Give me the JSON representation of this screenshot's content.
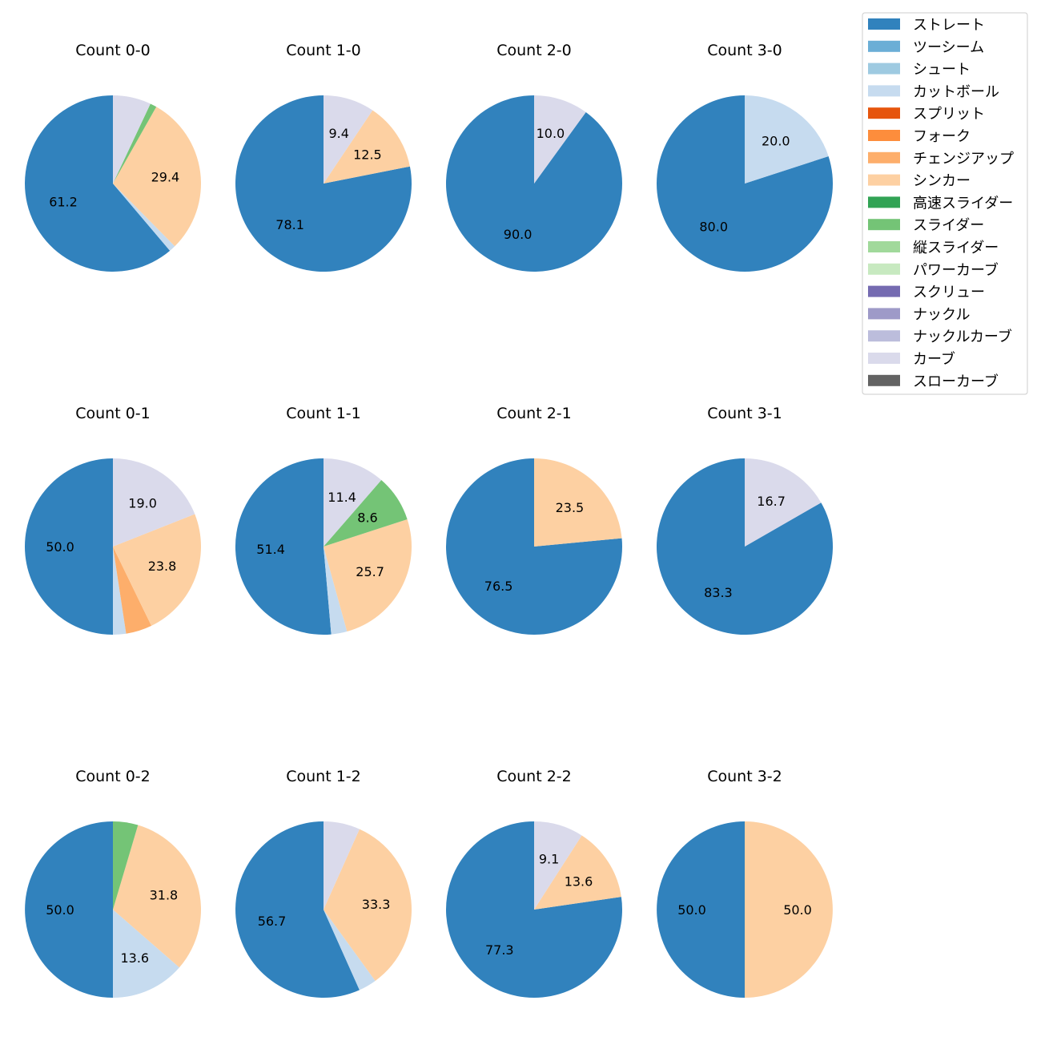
{
  "pitch_types": [
    {
      "name": "ストレート",
      "color": "#3182bd"
    },
    {
      "name": "ツーシーム",
      "color": "#6baed6"
    },
    {
      "name": "シュート",
      "color": "#9ecae1"
    },
    {
      "name": "カットボール",
      "color": "#c6dbef"
    },
    {
      "name": "スプリット",
      "color": "#e6550d"
    },
    {
      "name": "フォーク",
      "color": "#fd8d3c"
    },
    {
      "name": "チェンジアップ",
      "color": "#fdae6b"
    },
    {
      "name": "シンカー",
      "color": "#fdd0a2"
    },
    {
      "name": "高速スライダー",
      "color": "#31a354"
    },
    {
      "name": "スライダー",
      "color": "#74c476"
    },
    {
      "name": "縦スライダー",
      "color": "#a1d99b"
    },
    {
      "name": "パワーカーブ",
      "color": "#c7e9c0"
    },
    {
      "name": "スクリュー",
      "color": "#756bb1"
    },
    {
      "name": "ナックル",
      "color": "#9e9ac8"
    },
    {
      "name": "ナックルカーブ",
      "color": "#bcbddc"
    },
    {
      "name": "カーブ",
      "color": "#dadaeb"
    },
    {
      "name": "スローカーブ",
      "color": "#636363"
    }
  ],
  "chart_data": [
    {
      "type": "pie",
      "title": "Count 0-0",
      "slices": [
        {
          "pitch": "ストレート",
          "value": 61.2,
          "label": "61.2"
        },
        {
          "pitch": "カットボール",
          "value": 1.2,
          "label": ""
        },
        {
          "pitch": "シンカー",
          "value": 29.4,
          "label": "29.4"
        },
        {
          "pitch": "スライダー",
          "value": 1.2,
          "label": ""
        },
        {
          "pitch": "カーブ",
          "value": 7.0,
          "label": ""
        }
      ]
    },
    {
      "type": "pie",
      "title": "Count 1-0",
      "slices": [
        {
          "pitch": "ストレート",
          "value": 78.1,
          "label": "78.1"
        },
        {
          "pitch": "シンカー",
          "value": 12.5,
          "label": "12.5"
        },
        {
          "pitch": "カーブ",
          "value": 9.4,
          "label": "9.4"
        }
      ]
    },
    {
      "type": "pie",
      "title": "Count 2-0",
      "slices": [
        {
          "pitch": "ストレート",
          "value": 90.0,
          "label": "90.0"
        },
        {
          "pitch": "カーブ",
          "value": 10.0,
          "label": "10.0"
        }
      ]
    },
    {
      "type": "pie",
      "title": "Count 3-0",
      "slices": [
        {
          "pitch": "ストレート",
          "value": 80.0,
          "label": "80.0"
        },
        {
          "pitch": "カットボール",
          "value": 20.0,
          "label": "20.0"
        }
      ]
    },
    {
      "type": "pie",
      "title": "Count 0-1",
      "slices": [
        {
          "pitch": "ストレート",
          "value": 50.0,
          "label": "50.0"
        },
        {
          "pitch": "カットボール",
          "value": 2.4,
          "label": ""
        },
        {
          "pitch": "チェンジアップ",
          "value": 4.8,
          "label": ""
        },
        {
          "pitch": "シンカー",
          "value": 23.8,
          "label": "23.8"
        },
        {
          "pitch": "カーブ",
          "value": 19.0,
          "label": "19.0"
        }
      ]
    },
    {
      "type": "pie",
      "title": "Count 1-1",
      "slices": [
        {
          "pitch": "ストレート",
          "value": 51.4,
          "label": "51.4"
        },
        {
          "pitch": "カットボール",
          "value": 2.9,
          "label": ""
        },
        {
          "pitch": "シンカー",
          "value": 25.7,
          "label": "25.7"
        },
        {
          "pitch": "スライダー",
          "value": 8.6,
          "label": "8.6"
        },
        {
          "pitch": "カーブ",
          "value": 11.4,
          "label": "11.4"
        }
      ]
    },
    {
      "type": "pie",
      "title": "Count 2-1",
      "slices": [
        {
          "pitch": "ストレート",
          "value": 76.5,
          "label": "76.5"
        },
        {
          "pitch": "シンカー",
          "value": 23.5,
          "label": "23.5"
        }
      ]
    },
    {
      "type": "pie",
      "title": "Count 3-1",
      "slices": [
        {
          "pitch": "ストレート",
          "value": 83.3,
          "label": "83.3"
        },
        {
          "pitch": "カーブ",
          "value": 16.7,
          "label": "16.7"
        }
      ]
    },
    {
      "type": "pie",
      "title": "Count 0-2",
      "slices": [
        {
          "pitch": "ストレート",
          "value": 50.0,
          "label": "50.0"
        },
        {
          "pitch": "カットボール",
          "value": 13.6,
          "label": "13.6"
        },
        {
          "pitch": "シンカー",
          "value": 31.8,
          "label": "31.8"
        },
        {
          "pitch": "スライダー",
          "value": 4.6,
          "label": ""
        }
      ]
    },
    {
      "type": "pie",
      "title": "Count 1-2",
      "slices": [
        {
          "pitch": "ストレート",
          "value": 56.7,
          "label": "56.7"
        },
        {
          "pitch": "カットボール",
          "value": 3.3,
          "label": ""
        },
        {
          "pitch": "シンカー",
          "value": 33.3,
          "label": "33.3"
        },
        {
          "pitch": "カーブ",
          "value": 6.7,
          "label": ""
        }
      ]
    },
    {
      "type": "pie",
      "title": "Count 2-2",
      "slices": [
        {
          "pitch": "ストレート",
          "value": 77.3,
          "label": "77.3"
        },
        {
          "pitch": "シンカー",
          "value": 13.6,
          "label": "13.6"
        },
        {
          "pitch": "カーブ",
          "value": 9.1,
          "label": "9.1"
        }
      ]
    },
    {
      "type": "pie",
      "title": "Count 3-2",
      "slices": [
        {
          "pitch": "ストレート",
          "value": 50.0,
          "label": "50.0"
        },
        {
          "pitch": "シンカー",
          "value": 50.0,
          "label": "50.0"
        }
      ]
    }
  ]
}
